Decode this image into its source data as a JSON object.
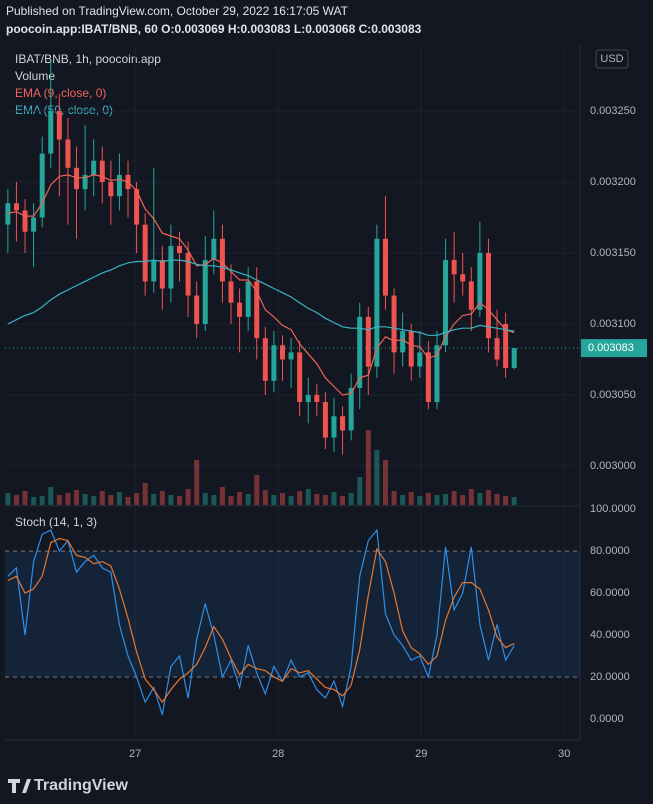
{
  "header": {
    "published": "Published on TradingView.com, October 29, 2022 16:17:05 WAT",
    "symbol_line": "poocoin.app:IBAT/BNB, 60 O:0.003069 H:0.003083 L:0.003068 C:0.003083"
  },
  "footer": {
    "logo": "TradingView"
  },
  "chart_data": [
    {
      "type": "candlestick",
      "title": "IBAT/BNB, 1h, poocoin.app",
      "currency": "USD",
      "x": [
        26.11,
        26.17,
        26.23,
        26.29,
        26.35,
        26.41,
        26.47,
        26.53,
        26.59,
        26.65,
        26.71,
        26.77,
        26.83,
        26.89,
        26.95,
        27.01,
        27.07,
        27.13,
        27.19,
        27.25,
        27.31,
        27.37,
        27.43,
        27.49,
        27.55,
        27.61,
        27.67,
        27.73,
        27.79,
        27.85,
        27.91,
        27.97,
        28.03,
        28.09,
        28.15,
        28.21,
        28.27,
        28.33,
        28.39,
        28.45,
        28.51,
        28.57,
        28.63,
        28.69,
        28.75,
        28.81,
        28.87,
        28.93,
        28.99,
        29.05,
        29.11,
        29.17,
        29.23,
        29.29,
        29.35,
        29.41,
        29.47,
        29.53,
        29.59,
        29.65
      ],
      "open": [
        0.00317,
        0.003185,
        0.00318,
        0.003165,
        0.003175,
        0.00322,
        0.00325,
        0.00323,
        0.00321,
        0.003195,
        0.003205,
        0.003215,
        0.0032,
        0.00319,
        0.003205,
        0.003195,
        0.00317,
        0.00313,
        0.003145,
        0.003125,
        0.003155,
        0.00315,
        0.00312,
        0.0031,
        0.003145,
        0.00316,
        0.00313,
        0.003115,
        0.003105,
        0.00313,
        0.00309,
        0.00306,
        0.003085,
        0.003075,
        0.00308,
        0.003045,
        0.00305,
        0.003045,
        0.00302,
        0.003035,
        0.003025,
        0.003055,
        0.003105,
        0.00307,
        0.00316,
        0.00312,
        0.00308,
        0.003095,
        0.00307,
        0.00308,
        0.003045,
        0.003085,
        0.003145,
        0.003135,
        0.00313,
        0.00311,
        0.00315,
        0.00309,
        0.0031,
        0.003069
      ],
      "high": [
        0.003195,
        0.0032,
        0.003188,
        0.003185,
        0.003232,
        0.003285,
        0.003262,
        0.003245,
        0.003225,
        0.00324,
        0.00323,
        0.003225,
        0.003215,
        0.00322,
        0.003215,
        0.0032,
        0.003178,
        0.00321,
        0.003155,
        0.00317,
        0.003165,
        0.003158,
        0.00313,
        0.003162,
        0.00318,
        0.00317,
        0.003142,
        0.003125,
        0.00314,
        0.00314,
        0.003098,
        0.003095,
        0.003092,
        0.00309,
        0.003088,
        0.003062,
        0.003058,
        0.003052,
        0.003048,
        0.003042,
        0.003065,
        0.003115,
        0.003112,
        0.00317,
        0.00319,
        0.003125,
        0.003108,
        0.0031,
        0.003095,
        0.003088,
        0.003095,
        0.00316,
        0.003165,
        0.00315,
        0.00314,
        0.003172,
        0.00316,
        0.00311,
        0.003108,
        0.003083
      ],
      "low": [
        0.00315,
        0.003158,
        0.00315,
        0.00314,
        0.003168,
        0.00321,
        0.00319,
        0.00317,
        0.00316,
        0.00318,
        0.00319,
        0.003185,
        0.00317,
        0.00318,
        0.003175,
        0.00315,
        0.00312,
        0.003122,
        0.00311,
        0.003115,
        0.00313,
        0.003105,
        0.00309,
        0.003095,
        0.003135,
        0.003115,
        0.0031,
        0.00308,
        0.003095,
        0.003075,
        0.00305,
        0.003052,
        0.00306,
        0.003055,
        0.003035,
        0.00303,
        0.003035,
        0.003012,
        0.00301,
        0.003008,
        0.003018,
        0.00304,
        0.00305,
        0.003062,
        0.00311,
        0.003065,
        0.00307,
        0.00306,
        0.003062,
        0.00304,
        0.00304,
        0.00308,
        0.003115,
        0.00312,
        0.003095,
        0.003105,
        0.00308,
        0.00307,
        0.003062,
        0.003068
      ],
      "close": [
        0.003185,
        0.00318,
        0.003165,
        0.003175,
        0.00322,
        0.00325,
        0.00323,
        0.00321,
        0.003195,
        0.003205,
        0.003215,
        0.0032,
        0.00319,
        0.003205,
        0.003195,
        0.00317,
        0.00313,
        0.003145,
        0.003125,
        0.003155,
        0.00315,
        0.00312,
        0.0031,
        0.003145,
        0.00316,
        0.00313,
        0.003115,
        0.003105,
        0.00313,
        0.00309,
        0.00306,
        0.003085,
        0.003075,
        0.00308,
        0.003045,
        0.00305,
        0.003045,
        0.00302,
        0.003035,
        0.003025,
        0.003055,
        0.003105,
        0.00307,
        0.00316,
        0.00312,
        0.00308,
        0.003095,
        0.00307,
        0.00308,
        0.003045,
        0.003085,
        0.003145,
        0.003135,
        0.00313,
        0.00311,
        0.00315,
        0.00309,
        0.003075,
        0.003069,
        0.003083
      ],
      "up_color": "#26a69a",
      "down_color": "#ef5350",
      "volume": {
        "name": "Volume",
        "ylim": [
          0,
          100
        ],
        "values": [
          12,
          10,
          14,
          8,
          9,
          18,
          10,
          12,
          15,
          11,
          9,
          14,
          10,
          13,
          8,
          12,
          22,
          11,
          14,
          10,
          9,
          16,
          45,
          12,
          10,
          18,
          9,
          13,
          11,
          30,
          15,
          10,
          12,
          9,
          14,
          16,
          11,
          10,
          13,
          9,
          12,
          28,
          75,
          55,
          45,
          14,
          10,
          13,
          9,
          12,
          10,
          11,
          14,
          10,
          16,
          12,
          15,
          11,
          9,
          8
        ]
      },
      "series": [
        {
          "name": "EMA (9, close, 0)",
          "color": "#f0625a",
          "values": [
            0.003178,
            0.003179,
            0.003176,
            0.003176,
            0.003185,
            0.003198,
            0.003204,
            0.003205,
            0.003203,
            0.003203,
            0.003205,
            0.003204,
            0.003201,
            0.003202,
            0.0032,
            0.003194,
            0.003181,
            0.003174,
            0.003164,
            0.003162,
            0.00316,
            0.003152,
            0.003141,
            0.003142,
            0.003146,
            0.003143,
            0.003137,
            0.003131,
            0.003131,
            0.003123,
            0.00311,
            0.003105,
            0.003099,
            0.003096,
            0.003086,
            0.003079,
            0.003072,
            0.003062,
            0.003056,
            0.00305,
            0.003051,
            0.003062,
            0.003064,
            0.003083,
            0.003091,
            0.003088,
            0.003089,
            0.003085,
            0.003084,
            0.003076,
            0.003078,
            0.003091,
            0.0031,
            0.003106,
            0.003107,
            0.003115,
            0.00311,
            0.003103,
            0.003096,
            0.003094
          ]
        },
        {
          "name": "EMA (50, close, 0)",
          "color": "#3bb3c3",
          "values": [
            0.0031,
            0.003103,
            0.003106,
            0.003108,
            0.003112,
            0.003117,
            0.003121,
            0.003124,
            0.003127,
            0.00313,
            0.003133,
            0.003136,
            0.003138,
            0.003141,
            0.003143,
            0.003144,
            0.003144,
            0.003145,
            0.003144,
            0.003145,
            0.003145,
            0.003144,
            0.003142,
            0.003141,
            0.003141,
            0.00314,
            0.003138,
            0.003136,
            0.003134,
            0.003131,
            0.003128,
            0.003125,
            0.003122,
            0.003119,
            0.003115,
            0.003111,
            0.003108,
            0.003104,
            0.003101,
            0.003098,
            0.003097,
            0.003097,
            0.003096,
            0.003098,
            0.003098,
            0.003097,
            0.003096,
            0.003095,
            0.003094,
            0.003092,
            0.003092,
            0.003094,
            0.003096,
            0.003097,
            0.003097,
            0.003099,
            0.003098,
            0.003097,
            0.003096,
            0.003095
          ]
        }
      ],
      "xlim": [
        26.09,
        30.11
      ],
      "xticks": [
        27,
        28,
        29,
        30
      ],
      "ylim": [
        0.0029725,
        0.0032965
      ],
      "yticks": [
        {
          "value": 0.003,
          "label": "0.003000"
        },
        {
          "value": 0.00305,
          "label": "0.003050"
        },
        {
          "value": 0.0031,
          "label": "0.003100"
        },
        {
          "value": 0.00315,
          "label": "0.003150"
        },
        {
          "value": 0.0032,
          "label": "0.003200"
        },
        {
          "value": 0.00325,
          "label": "0.003250"
        }
      ],
      "last_price": 0.003083,
      "last_price_label": "0.003083"
    },
    {
      "type": "line",
      "title": "Stoch (14, 1, 3)",
      "band": [
        20,
        80
      ],
      "band_color": "#2196f3",
      "series": [
        {
          "color": "#2f8ee8",
          "values": [
            68,
            72,
            40,
            75,
            88,
            90,
            80,
            85,
            70,
            75,
            78,
            72,
            70,
            45,
            30,
            20,
            8,
            15,
            2,
            25,
            30,
            10,
            38,
            55,
            40,
            20,
            28,
            15,
            35,
            22,
            12,
            25,
            18,
            28,
            20,
            22,
            14,
            10,
            18,
            6,
            25,
            68,
            85,
            90,
            50,
            40,
            35,
            28,
            30,
            20,
            40,
            82,
            52,
            60,
            82,
            45,
            28,
            45,
            28,
            35
          ]
        },
        {
          "color": "#e8772e",
          "values": [
            66,
            68,
            60,
            62,
            68,
            84,
            86,
            85,
            78,
            77,
            74,
            75,
            73,
            62,
            48,
            32,
            19,
            14,
            8,
            14,
            19,
            22,
            26,
            34,
            44,
            38,
            29,
            21,
            26,
            24,
            23,
            20,
            18,
            24,
            22,
            23,
            19,
            15,
            14,
            11,
            16,
            33,
            59,
            81,
            75,
            60,
            42,
            34,
            31,
            26,
            30,
            47,
            58,
            65,
            65,
            62,
            52,
            39,
            34,
            36
          ]
        }
      ],
      "ylim": [
        -10,
        101
      ],
      "yticks": [
        {
          "value": 0,
          "label": "0.0000"
        },
        {
          "value": 20,
          "label": "20.0000"
        },
        {
          "value": 40,
          "label": "40.0000"
        },
        {
          "value": 60,
          "label": "60.0000"
        },
        {
          "value": 80,
          "label": "80.0000"
        },
        {
          "value": 100,
          "label": "100.0000"
        }
      ]
    }
  ]
}
